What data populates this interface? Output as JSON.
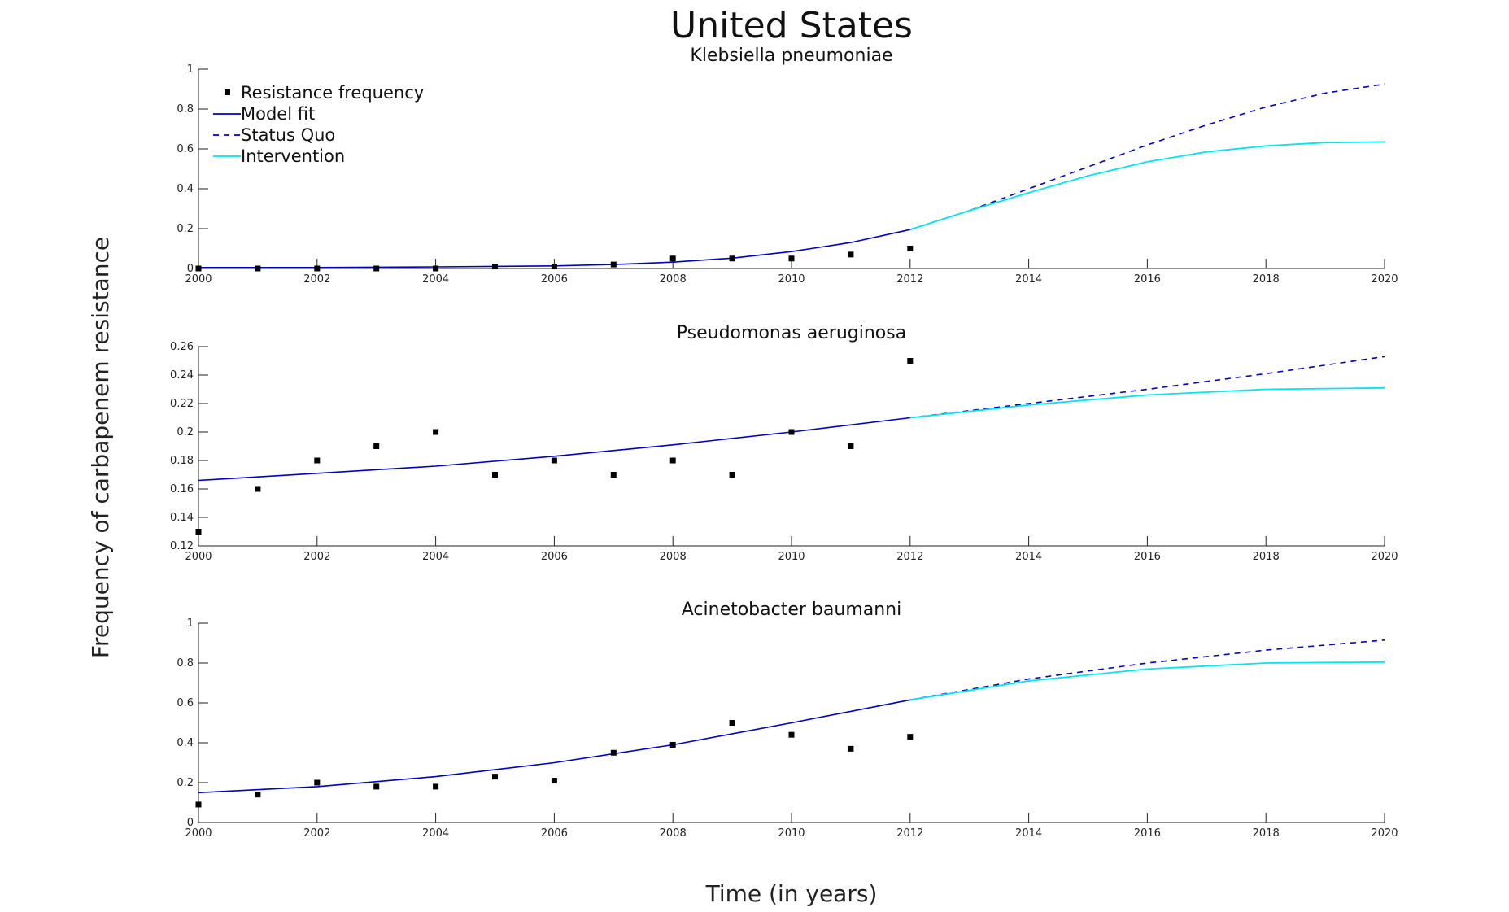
{
  "figure": {
    "title": "United States",
    "ylabel": "Frequency of carbapenem resistance",
    "xlabel": "Time (in years)"
  },
  "legend": {
    "placement": "top-left of first panel",
    "entries": [
      {
        "label": "Resistance frequency",
        "style": "marker",
        "color": "#000000"
      },
      {
        "label": "Model fit",
        "style": "solid",
        "color": "#0000c0"
      },
      {
        "label": "Status Quo",
        "style": "dashed",
        "color": "#0000c0"
      },
      {
        "label": "Intervention",
        "style": "solid",
        "color": "#00e5ee"
      }
    ]
  },
  "colors": {
    "observed": "#000000",
    "model": "#0000c0",
    "status_quo": "#0000c0",
    "intervention": "#00e5ee",
    "axes": "#222222"
  },
  "chart_data": [
    {
      "type": "line",
      "title": "Klebsiella pneumoniae",
      "xlim": [
        2000,
        2020
      ],
      "ylim": [
        0,
        1
      ],
      "xticks": [
        "2000",
        "2002",
        "2004",
        "2006",
        "2008",
        "2010",
        "2012",
        "2014",
        "2016",
        "2018",
        "2020"
      ],
      "yticks": [
        "0",
        "0.2",
        "0.4",
        "0.6",
        "0.8",
        "1"
      ],
      "grid": false,
      "series": [
        {
          "name": "Resistance frequency",
          "kind": "scatter",
          "x": [
            2000,
            2001,
            2002,
            2003,
            2004,
            2005,
            2006,
            2007,
            2008,
            2009,
            2010,
            2011,
            2012
          ],
          "y": [
            0,
            0,
            0,
            0,
            0,
            0.01,
            0.01,
            0.02,
            0.05,
            0.05,
            0.05,
            0.07,
            0.1
          ]
        },
        {
          "name": "Model fit",
          "kind": "line",
          "x": [
            2000,
            2002,
            2004,
            2006,
            2007,
            2008,
            2009,
            2010,
            2011,
            2012
          ],
          "y": [
            0.005,
            0.005,
            0.008,
            0.013,
            0.02,
            0.032,
            0.052,
            0.085,
            0.13,
            0.195
          ]
        },
        {
          "name": "Status Quo",
          "kind": "dashed",
          "x": [
            2012,
            2013,
            2014,
            2015,
            2016,
            2017,
            2018,
            2019,
            2020
          ],
          "y": [
            0.195,
            0.29,
            0.4,
            0.51,
            0.62,
            0.72,
            0.81,
            0.88,
            0.925
          ]
        },
        {
          "name": "Intervention",
          "kind": "line",
          "x": [
            2012,
            2013,
            2014,
            2015,
            2016,
            2017,
            2018,
            2019,
            2020
          ],
          "y": [
            0.195,
            0.29,
            0.38,
            0.465,
            0.535,
            0.585,
            0.615,
            0.632,
            0.635
          ]
        }
      ]
    },
    {
      "type": "line",
      "title": "Pseudomonas aeruginosa",
      "xlim": [
        2000,
        2020
      ],
      "ylim": [
        0.12,
        0.26
      ],
      "xticks": [
        "2000",
        "2002",
        "2004",
        "2006",
        "2008",
        "2010",
        "2012",
        "2014",
        "2016",
        "2018",
        "2020"
      ],
      "yticks": [
        "0.12",
        "0.14",
        "0.16",
        "0.18",
        "0.2",
        "0.22",
        "0.24",
        "0.26"
      ],
      "grid": false,
      "series": [
        {
          "name": "Resistance frequency",
          "kind": "scatter",
          "x": [
            2000,
            2001,
            2002,
            2003,
            2004,
            2005,
            2006,
            2007,
            2008,
            2009,
            2010,
            2011,
            2012
          ],
          "y": [
            0.13,
            0.16,
            0.18,
            0.19,
            0.2,
            0.17,
            0.18,
            0.17,
            0.18,
            0.17,
            0.2,
            0.19,
            0.25
          ]
        },
        {
          "name": "Model fit",
          "kind": "line",
          "x": [
            2000,
            2002,
            2004,
            2006,
            2008,
            2010,
            2012
          ],
          "y": [
            0.166,
            0.171,
            0.176,
            0.183,
            0.191,
            0.2,
            0.21
          ]
        },
        {
          "name": "Status Quo",
          "kind": "dashed",
          "x": [
            2012,
            2014,
            2016,
            2018,
            2020
          ],
          "y": [
            0.21,
            0.22,
            0.23,
            0.241,
            0.253
          ]
        },
        {
          "name": "Intervention",
          "kind": "line",
          "x": [
            2012,
            2014,
            2016,
            2018,
            2020
          ],
          "y": [
            0.21,
            0.219,
            0.226,
            0.23,
            0.231
          ]
        }
      ]
    },
    {
      "type": "line",
      "title": "Acinetobacter baumanni",
      "xlim": [
        2000,
        2020
      ],
      "ylim": [
        0,
        1
      ],
      "xticks": [
        "2000",
        "2002",
        "2004",
        "2006",
        "2008",
        "2010",
        "2012",
        "2014",
        "2016",
        "2018",
        "2020"
      ],
      "yticks": [
        "0",
        "0.2",
        "0.4",
        "0.6",
        "0.8",
        "1"
      ],
      "grid": false,
      "series": [
        {
          "name": "Resistance frequency",
          "kind": "scatter",
          "x": [
            2000,
            2001,
            2002,
            2003,
            2004,
            2005,
            2006,
            2007,
            2008,
            2009,
            2010,
            2011,
            2012
          ],
          "y": [
            0.09,
            0.14,
            0.2,
            0.18,
            0.18,
            0.23,
            0.21,
            0.35,
            0.39,
            0.5,
            0.44,
            0.37,
            0.43
          ]
        },
        {
          "name": "Model fit",
          "kind": "line",
          "x": [
            2000,
            2002,
            2004,
            2006,
            2008,
            2010,
            2012
          ],
          "y": [
            0.15,
            0.18,
            0.23,
            0.3,
            0.39,
            0.5,
            0.615
          ]
        },
        {
          "name": "Status Quo",
          "kind": "dashed",
          "x": [
            2012,
            2014,
            2016,
            2018,
            2020
          ],
          "y": [
            0.615,
            0.72,
            0.8,
            0.865,
            0.915
          ]
        },
        {
          "name": "Intervention",
          "kind": "line",
          "x": [
            2012,
            2014,
            2016,
            2018,
            2020
          ],
          "y": [
            0.615,
            0.71,
            0.77,
            0.8,
            0.805
          ]
        }
      ]
    }
  ]
}
